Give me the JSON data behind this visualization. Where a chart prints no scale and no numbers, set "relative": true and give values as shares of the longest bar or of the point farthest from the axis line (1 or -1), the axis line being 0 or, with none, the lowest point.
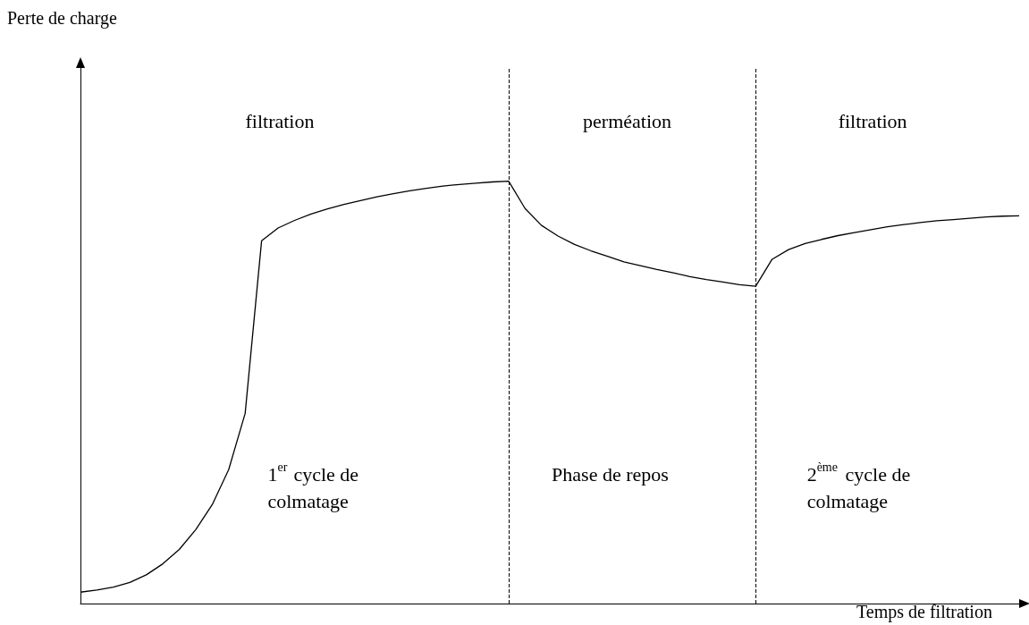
{
  "chart_data": {
    "type": "line",
    "relative": true,
    "xlabel": "Temps de filtration",
    "categories": [
      null,
      null,
      null,
      null,
      null,
      null,
      null,
      null,
      null,
      null,
      null,
      null,
      null,
      null,
      null,
      null,
      null,
      null,
      null,
      null,
      null,
      null,
      null,
      null,
      null,
      null,
      null,
      null,
      null,
      null,
      null,
      null,
      null,
      null,
      null,
      null,
      null,
      null,
      null,
      null,
      null,
      null,
      null,
      null,
      null,
      null,
      null,
      null,
      null,
      null,
      null,
      null,
      null,
      null,
      null,
      null,
      null,
      null
    ],
    "grid": false,
    "marker": "none",
    "line_style": "solid",
    "series": [
      {
        "color": "#000000",
        "values": [
          0.027,
          0.032,
          0.039,
          0.05,
          0.068,
          0.094,
          0.128,
          0.175,
          0.234,
          0.317,
          0.45,
          0.859,
          0.889,
          0.907,
          0.922,
          0.934,
          0.945,
          0.954,
          0.963,
          0.97,
          0.977,
          0.983,
          0.988,
          0.992,
          0.995,
          0.998,
          1,
          0.935,
          0.895,
          0.87,
          0.85,
          0.835,
          0.822,
          0.809,
          0.8,
          0.791,
          0.783,
          0.774,
          0.767,
          0.761,
          0.755,
          0.751,
          0.815,
          0.838,
          0.852,
          0.862,
          0.871,
          0.878,
          0.885,
          0.892,
          0.897,
          0.902,
          0.906,
          0.909,
          0.912,
          0.915,
          0.917,
          0.918
        ]
      }
    ],
    "annotations": [
      "filtration",
      "perméation",
      "filtration",
      "1$^{er}$ cycle de colmatage",
      "Phase de repos",
      "2$^{ème}$ cycle de colmatage",
      "Perte de charge"
    ]
  }
}
